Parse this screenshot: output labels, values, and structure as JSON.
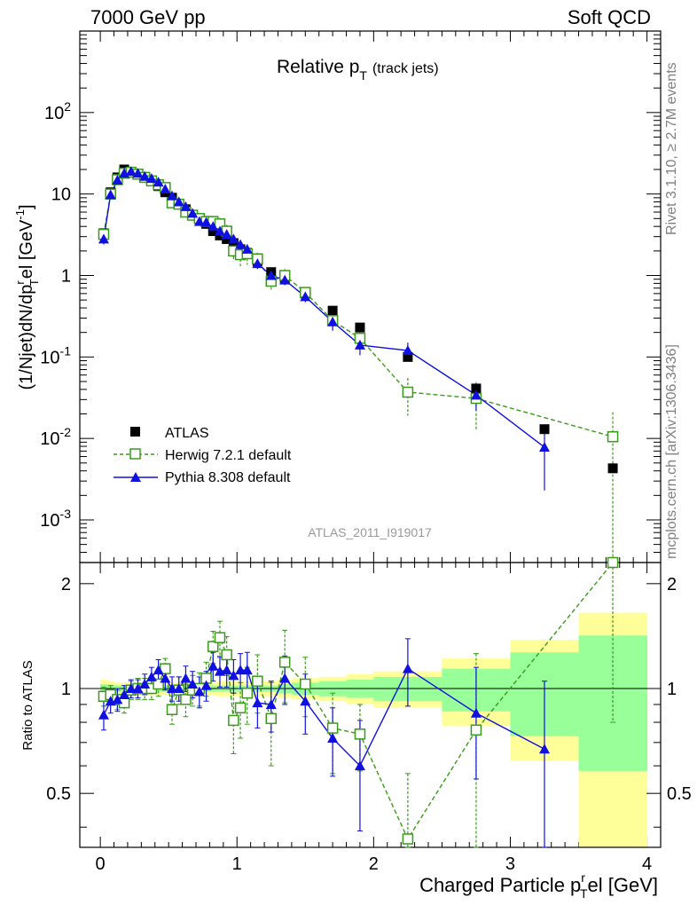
{
  "header": {
    "left": "7000 GeV pp",
    "right": "Soft QCD"
  },
  "plot_title": {
    "main": "Relative p",
    "sub": "T",
    "suffix": "(track jets)"
  },
  "side_text": {
    "rivet": "Rivet 3.1.10, ≥ 2.7M events",
    "mcplots": "mcplots.cern.ch [arXiv:1306.3436]"
  },
  "analysis_label": "ATLAS_2011_I919017",
  "axes": {
    "ylabel_main": "(1/Njet)dN/dp",
    "ylabel_main_sup": "r",
    "ylabel_main_sub": "T",
    "ylabel_main_tail": "el [GeV",
    "ylabel_main_unit_sup": "-1",
    "ylabel_main_close": "]",
    "ylabel_ratio": "Ratio to ATLAS",
    "xlabel_main": "Charged Particle p",
    "xlabel_sup": "r",
    "xlabel_sub": "T",
    "xlabel_tail": "el [GeV]",
    "main_yticks": [
      {
        "b": "10",
        "e": "-3",
        "v": 0.001
      },
      {
        "b": "10",
        "e": "-2",
        "v": 0.01
      },
      {
        "b": "10",
        "e": "-1",
        "v": 0.1
      },
      {
        "b": "1",
        "e": "",
        "v": 1
      },
      {
        "b": "10",
        "e": "",
        "v": 10
      },
      {
        "b": "10",
        "e": "2",
        "v": 100
      }
    ],
    "ratio_yticks": [
      "0.5",
      "1",
      "2"
    ],
    "xticks": [
      "0",
      "1",
      "2",
      "3",
      "4"
    ]
  },
  "legend": [
    {
      "label": "ATLAS",
      "color": "#000000"
    },
    {
      "label": "Herwig 7.2.1 default",
      "color": "#3a9a1a"
    },
    {
      "label": "Pythia 8.308 default",
      "color": "#1010e0"
    }
  ],
  "chart_data": {
    "type": "scatter",
    "x_range": [
      -0.15,
      4.1
    ],
    "main_ylim": [
      0.0003,
      1000
    ],
    "main_yscale": "log",
    "ratio_ylim": [
      0.35,
      2.3
    ],
    "ratio_yscale": "log",
    "series": [
      {
        "name": "ATLAS",
        "color": "#000000",
        "marker": "square",
        "x": [
          0.025,
          0.075,
          0.125,
          0.175,
          0.225,
          0.275,
          0.325,
          0.375,
          0.425,
          0.475,
          0.525,
          0.575,
          0.625,
          0.675,
          0.725,
          0.775,
          0.825,
          0.875,
          0.925,
          0.975,
          1.025,
          1.075,
          1.15,
          1.25,
          1.35,
          1.5,
          1.7,
          1.9,
          2.25,
          2.75,
          3.25,
          3.75
        ],
        "y": [
          3.3,
          10.5,
          16.0,
          20.0,
          18.5,
          17.5,
          16.0,
          14.5,
          12.5,
          10.5,
          9.0,
          7.5,
          6.5,
          5.5,
          5.0,
          4.3,
          3.5,
          3.1,
          2.8,
          2.5,
          2.1,
          1.9,
          1.5,
          1.1,
          0.9,
          0.6,
          0.37,
          0.23,
          0.1,
          0.041,
          0.013,
          0.0043
        ]
      },
      {
        "name": "Herwig 7.2.1 default",
        "color": "#3a9a1a",
        "marker": "open-square",
        "line": "dashed",
        "x": [
          0.025,
          0.075,
          0.125,
          0.175,
          0.225,
          0.275,
          0.325,
          0.375,
          0.425,
          0.475,
          0.525,
          0.575,
          0.625,
          0.675,
          0.725,
          0.775,
          0.825,
          0.875,
          0.925,
          0.975,
          1.025,
          1.075,
          1.15,
          1.25,
          1.35,
          1.5,
          1.7,
          1.9,
          2.25,
          2.75,
          3.75
        ],
        "y": [
          3.2,
          10.0,
          15.0,
          18.0,
          18.5,
          17.5,
          16.0,
          14.5,
          13.0,
          12.0,
          7.8,
          7.5,
          6.0,
          5.5,
          5.0,
          4.6,
          4.6,
          4.3,
          3.5,
          2.0,
          1.8,
          1.85,
          1.6,
          0.85,
          1.0,
          0.62,
          0.28,
          0.17,
          0.037,
          0.031,
          0.0105
        ],
        "err": [
          0.4,
          0.6,
          0.8,
          1.0,
          1.0,
          1.0,
          1.0,
          1.0,
          1.0,
          1.0,
          1.0,
          0.8,
          0.8,
          0.8,
          0.9,
          0.8,
          0.8,
          0.8,
          0.7,
          0.5,
          0.5,
          0.5,
          0.3,
          0.2,
          0.2,
          0.1,
          0.06,
          0.04,
          0.018,
          0.018,
          0.0105
        ],
        "ratio": [
          0.95,
          0.96,
          0.93,
          0.91,
          0.99,
          1.0,
          1.0,
          1.0,
          1.03,
          1.14,
          0.87,
          0.99,
          0.93,
          0.99,
          1.0,
          1.07,
          1.32,
          1.4,
          1.25,
          0.81,
          0.88,
          0.97,
          1.05,
          0.82,
          1.19,
          1.03,
          0.77,
          0.74,
          0.37,
          0.76,
          2.3
        ],
        "ratio_err": [
          0.06,
          0.06,
          0.06,
          0.06,
          0.06,
          0.07,
          0.07,
          0.07,
          0.08,
          0.08,
          0.08,
          0.09,
          0.1,
          0.1,
          0.11,
          0.12,
          0.14,
          0.16,
          0.16,
          0.16,
          0.16,
          0.18,
          0.2,
          0.22,
          0.28,
          0.2,
          0.2,
          0.16,
          0.2,
          0.5,
          1.5
        ]
      },
      {
        "name": "Pythia 8.308 default",
        "color": "#1010e0",
        "marker": "triangle",
        "line": "solid",
        "x": [
          0.025,
          0.075,
          0.125,
          0.175,
          0.225,
          0.275,
          0.325,
          0.375,
          0.425,
          0.475,
          0.525,
          0.575,
          0.625,
          0.675,
          0.725,
          0.775,
          0.825,
          0.875,
          0.925,
          0.975,
          1.025,
          1.075,
          1.15,
          1.25,
          1.35,
          1.5,
          1.7,
          1.9,
          2.25,
          2.75,
          3.25
        ],
        "y": [
          2.8,
          9.8,
          14.8,
          18.0,
          19.0,
          18.0,
          16.5,
          15.5,
          14.0,
          11.5,
          9.5,
          8.0,
          7.0,
          5.8,
          4.6,
          4.5,
          4.0,
          3.5,
          3.2,
          2.8,
          2.4,
          2.1,
          1.4,
          1.0,
          0.88,
          0.55,
          0.27,
          0.14,
          0.12,
          0.034,
          0.0078
        ],
        "err": [
          0.4,
          0.5,
          0.6,
          0.7,
          0.7,
          0.7,
          0.7,
          0.7,
          0.6,
          0.6,
          0.6,
          0.5,
          0.5,
          0.4,
          0.4,
          0.4,
          0.4,
          0.3,
          0.3,
          0.3,
          0.3,
          0.3,
          0.2,
          0.15,
          0.12,
          0.08,
          0.06,
          0.035,
          0.03,
          0.012,
          0.0055
        ],
        "ratio": [
          0.84,
          0.92,
          0.93,
          0.96,
          1.0,
          1.0,
          1.03,
          1.08,
          1.13,
          1.07,
          1.0,
          1.0,
          1.07,
          1.03,
          0.98,
          1.02,
          1.16,
          1.12,
          1.13,
          1.09,
          1.13,
          1.13,
          0.91,
          0.9,
          1.07,
          0.92,
          0.72,
          0.6,
          1.14,
          0.85,
          0.67
        ],
        "ratio_err": [
          0.08,
          0.07,
          0.07,
          0.06,
          0.06,
          0.06,
          0.07,
          0.07,
          0.08,
          0.08,
          0.08,
          0.08,
          0.09,
          0.09,
          0.1,
          0.1,
          0.11,
          0.11,
          0.12,
          0.12,
          0.13,
          0.14,
          0.14,
          0.15,
          0.17,
          0.18,
          0.16,
          0.21,
          0.25,
          0.3,
          0.38
        ]
      }
    ],
    "band_edges": [
      0,
      0.05,
      0.1,
      0.15,
      0.2,
      0.25,
      0.3,
      0.35,
      0.4,
      0.45,
      0.5,
      0.55,
      0.6,
      0.65,
      0.7,
      0.75,
      0.8,
      0.85,
      0.9,
      0.95,
      1.0,
      1.05,
      1.1,
      1.2,
      1.3,
      1.4,
      1.6,
      1.8,
      2.0,
      2.5,
      3.0,
      3.5,
      4.0
    ],
    "stat_band": [
      0.03,
      0.025,
      0.02,
      0.02,
      0.02,
      0.02,
      0.02,
      0.02,
      0.02,
      0.02,
      0.02,
      0.02,
      0.02,
      0.02,
      0.02,
      0.02,
      0.02,
      0.02,
      0.02,
      0.02,
      0.02,
      0.02,
      0.02,
      0.02,
      0.03,
      0.04,
      0.05,
      0.06,
      0.08,
      0.14,
      0.27,
      0.42
    ],
    "total_band": [
      0.06,
      0.05,
      0.04,
      0.04,
      0.04,
      0.04,
      0.04,
      0.04,
      0.04,
      0.04,
      0.04,
      0.04,
      0.04,
      0.04,
      0.04,
      0.04,
      0.04,
      0.05,
      0.05,
      0.05,
      0.05,
      0.05,
      0.05,
      0.05,
      0.06,
      0.07,
      0.08,
      0.1,
      0.12,
      0.22,
      0.38,
      0.65
    ]
  }
}
